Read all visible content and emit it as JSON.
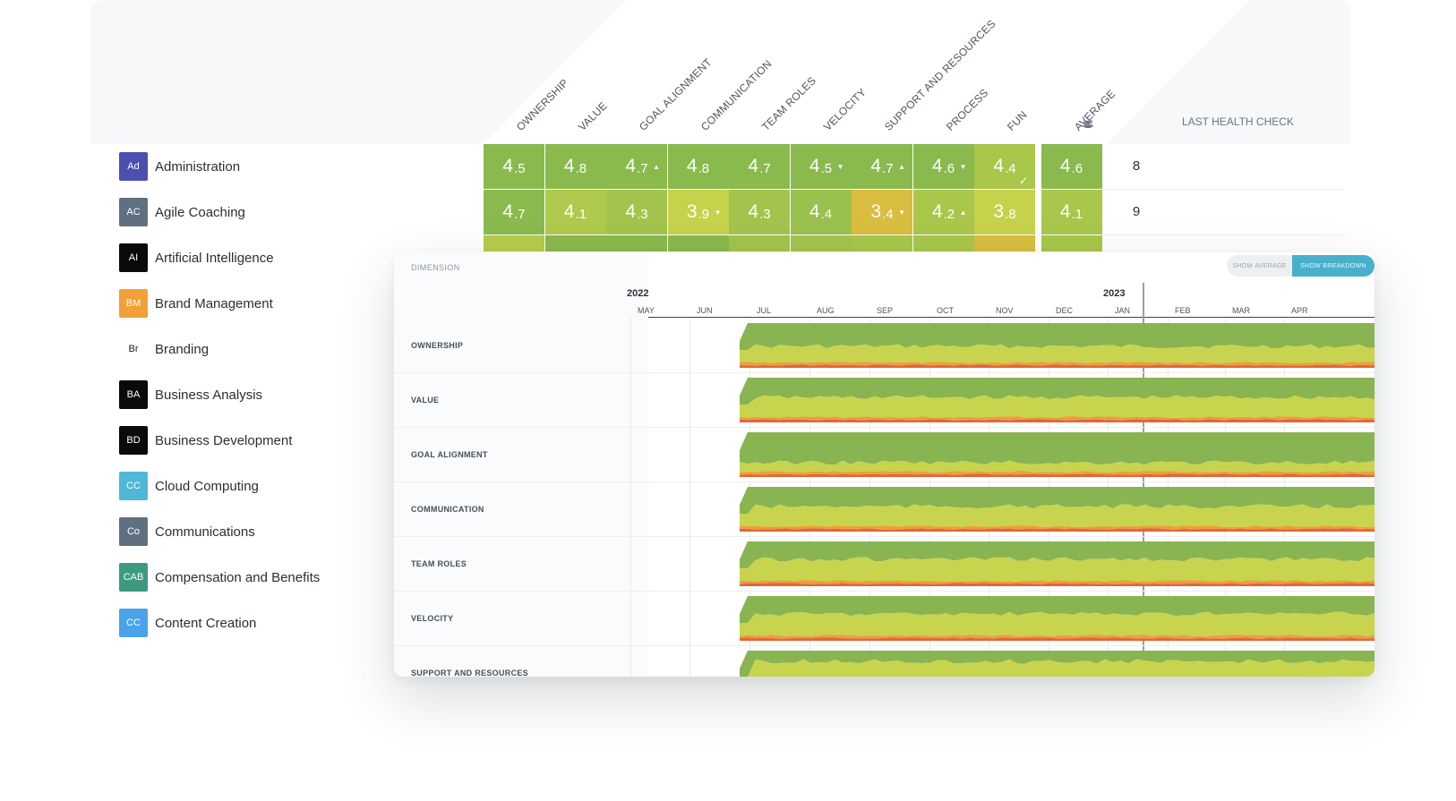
{
  "columns": [
    "OWNERSHIP",
    "VALUE",
    "GOAL ALIGNMENT",
    "COMMUNICATION",
    "TEAM ROLES",
    "VELOCITY",
    "SUPPORT AND RESOURCES",
    "PROCESS",
    "FUN"
  ],
  "average_label": "AVERAGE",
  "members_icon": "team-members-icon",
  "last_check_label": "LAST HEALTH CHECK",
  "teams": [
    {
      "abbr": "Ad",
      "name": "Administration",
      "color": "#4a4fb0"
    },
    {
      "abbr": "AC",
      "name": "Agile Coaching",
      "color": "#607080"
    },
    {
      "abbr": "AI",
      "name": "Artificial Intelligence",
      "color": "#0a0a0a"
    },
    {
      "abbr": "BM",
      "name": "Brand Management",
      "color": "#f2a03a"
    },
    {
      "abbr": "Br",
      "name": "Branding",
      "color": "#ffffff"
    },
    {
      "abbr": "BA",
      "name": "Business Analysis",
      "color": "#0a0a0a"
    },
    {
      "abbr": "BD",
      "name": "Business Development",
      "color": "#0a0a0a"
    },
    {
      "abbr": "CC",
      "name": "Cloud Computing",
      "color": "#4fb8d6"
    },
    {
      "abbr": "Co",
      "name": "Communications",
      "color": "#607080"
    },
    {
      "abbr": "CAB",
      "name": "Compensation and Benefits",
      "color": "#3d9a80"
    },
    {
      "abbr": "CC",
      "name": "Content Creation",
      "color": "#4aa3e8"
    }
  ],
  "scores": [
    {
      "cells": [
        {
          "big": "4",
          "small": ".5",
          "trend": "",
          "color": "#8ab94d"
        },
        {
          "big": "4",
          "small": ".8",
          "trend": "",
          "color": "#8ab94d"
        },
        {
          "big": "4",
          "small": ".7",
          "trend": "▲",
          "color": "#8ab94d"
        },
        {
          "big": "4",
          "small": ".8",
          "trend": "",
          "color": "#8ab94d"
        },
        {
          "big": "4",
          "small": ".7",
          "trend": "",
          "color": "#8ab94d"
        },
        {
          "big": "4",
          "small": ".5",
          "trend": "▼",
          "color": "#8ab94d"
        },
        {
          "big": "4",
          "small": ".7",
          "trend": "▲",
          "color": "#8ab94d"
        },
        {
          "big": "4",
          "small": ".6",
          "trend": "▼",
          "color": "#8ab94d"
        },
        {
          "big": "4",
          "small": ".4",
          "trend": "✓",
          "color": "#a8c74b"
        }
      ],
      "avg": {
        "big": "4",
        "small": ".6",
        "color": "#8ab94d"
      },
      "members": "8"
    },
    {
      "cells": [
        {
          "big": "4",
          "small": ".7",
          "trend": "",
          "color": "#8ab94d"
        },
        {
          "big": "4",
          "small": ".1",
          "trend": "",
          "color": "#afc94c"
        },
        {
          "big": "4",
          "small": ".3",
          "trend": "",
          "color": "#a2c44d"
        },
        {
          "big": "3",
          "small": ".9",
          "trend": "▼",
          "color": "#c6d24b"
        },
        {
          "big": "4",
          "small": ".3",
          "trend": "",
          "color": "#a2c44d"
        },
        {
          "big": "4",
          "small": ".4",
          "trend": "",
          "color": "#9ac04d"
        },
        {
          "big": "3",
          "small": ".4",
          "trend": "▼",
          "color": "#d8bd3f"
        },
        {
          "big": "4",
          "small": ".2",
          "trend": "▲",
          "color": "#a8c74b"
        },
        {
          "big": "3",
          "small": ".8",
          "trend": "",
          "color": "#c6d24b"
        }
      ],
      "avg": {
        "big": "4",
        "small": ".1",
        "color": "#a8c74b"
      },
      "members": "9"
    }
  ],
  "peek_row_colors": [
    "#b6cc4a",
    "#8ab94d",
    "#8ab94d",
    "#8ab94d",
    "#a2c44d",
    "#a2c44d",
    "#a8c74b",
    "#a8c74b",
    "#d8bd3f",
    "#a8c74b"
  ],
  "breakdown": {
    "dimension_label": "DIMENSION",
    "toggle_average": "SHOW AVERAGE",
    "toggle_breakdown": "SHOW BREAKDOWN",
    "years": [
      "2022",
      "2023"
    ],
    "months": [
      "MAY",
      "JUN",
      "JUL",
      "AUG",
      "SEP",
      "OCT",
      "NOV",
      "DEC",
      "JAN",
      "FEB",
      "MAR",
      "APR"
    ],
    "dimensions": [
      "OWNERSHIP",
      "VALUE",
      "GOAL ALIGNMENT",
      "COMMUNICATION",
      "TEAM ROLES",
      "VELOCITY",
      "SUPPORT AND RESOURCES"
    ],
    "band_colors": {
      "green": "#89b452",
      "lime": "#c8d44e",
      "orange": "#eba03a",
      "red": "#e0673a"
    }
  }
}
